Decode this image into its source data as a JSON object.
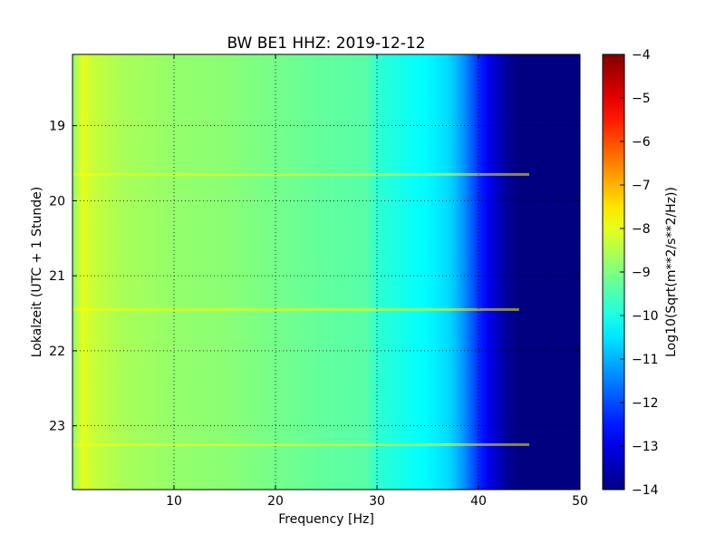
{
  "chart_data": {
    "type": "heatmap",
    "title": "BW BE1 HHZ: 2019-12-12",
    "xlabel": "Frequency [Hz]",
    "ylabel": "Lokalzeit (UTC + 1 Stunde)",
    "xlim": [
      0,
      50
    ],
    "ylim": [
      18.05,
      23.85
    ],
    "y_inverted": true,
    "x_ticks": [
      10,
      20,
      30,
      40,
      50
    ],
    "y_ticks": [
      19,
      20,
      21,
      22,
      23
    ],
    "grid": true,
    "colormap": "jet",
    "colorbar": {
      "label": "Log10(Sqrt(m**2/s**2/Hz))",
      "range": [
        -14,
        -4
      ],
      "ticks": [
        -4,
        -5,
        -6,
        -7,
        -8,
        -9,
        -10,
        -11,
        -12,
        -13,
        -14
      ]
    },
    "spectrum_profile": {
      "frequency_hz": [
        0,
        1,
        2,
        5,
        10,
        15,
        20,
        25,
        29,
        30,
        32,
        35,
        37,
        38,
        39,
        40,
        41,
        42,
        43,
        44,
        46,
        50
      ],
      "log10_amplitude": [
        -8.9,
        -8.0,
        -8.3,
        -8.6,
        -8.8,
        -8.9,
        -9.1,
        -9.3,
        -9.4,
        -9.8,
        -10.0,
        -10.3,
        -10.6,
        -11.0,
        -11.6,
        -12.3,
        -12.9,
        -13.4,
        -13.8,
        -14.0,
        -14.0,
        -14.0
      ]
    },
    "bright_events": [
      {
        "time": 19.65,
        "max_frequency_hz": 45
      },
      {
        "time": 21.45,
        "max_frequency_hz": 44
      },
      {
        "time": 23.25,
        "max_frequency_hz": 45
      }
    ]
  }
}
